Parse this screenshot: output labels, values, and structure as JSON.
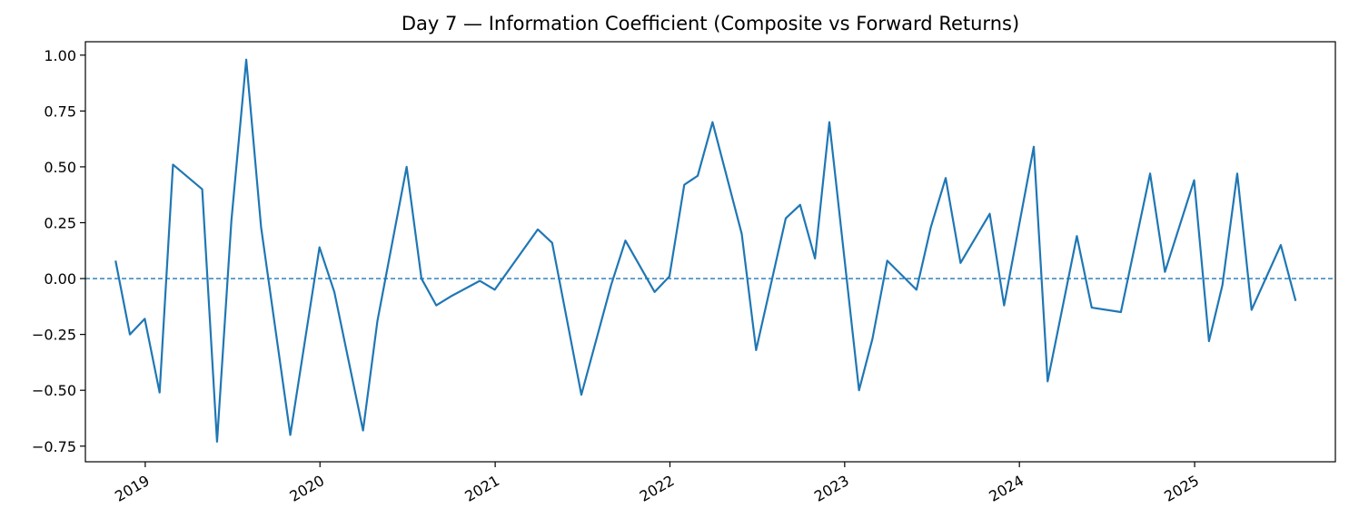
{
  "chart_data": {
    "type": "line",
    "title": "Day 7 — Information Coefficient (Composite vs Forward Returns)",
    "xlabel": "",
    "ylabel": "",
    "x_axis": {
      "type": "date",
      "range": [
        "2018-08-29",
        "2025-10-22"
      ],
      "tick_labels": [
        "2019",
        "2020",
        "2021",
        "2022",
        "2023",
        "2024",
        "2025"
      ],
      "tick_dates": [
        "2019-01-01",
        "2020-01-01",
        "2021-01-01",
        "2022-01-01",
        "2023-01-01",
        "2024-01-01",
        "2025-01-01"
      ]
    },
    "y_axis": {
      "range": [
        -0.82,
        1.06
      ],
      "tick_labels": [
        "−0.75",
        "−0.50",
        "−0.25",
        "0.00",
        "0.25",
        "0.50",
        "0.75",
        "1.00"
      ],
      "tick_values": [
        -0.75,
        -0.5,
        -0.25,
        0,
        0.25,
        0.5,
        0.75,
        1.0
      ]
    },
    "grid": false,
    "legend": "none",
    "reference_line": {
      "y": 0,
      "style": "dashed",
      "color": "#1f77b4"
    },
    "series": [
      {
        "color": "#1f77b4",
        "points": [
          [
            "2018-10-31",
            0.08
          ],
          [
            "2018-11-30",
            -0.25
          ],
          [
            "2018-12-31",
            -0.18
          ],
          [
            "2019-01-31",
            -0.51
          ],
          [
            "2019-02-28",
            0.51
          ],
          [
            "2019-04-30",
            0.4
          ],
          [
            "2019-05-31",
            -0.73
          ],
          [
            "2019-06-30",
            0.26
          ],
          [
            "2019-07-31",
            0.98
          ],
          [
            "2019-08-31",
            0.23
          ],
          [
            "2019-10-31",
            -0.7
          ],
          [
            "2019-12-31",
            0.14
          ],
          [
            "2020-01-31",
            -0.06
          ],
          [
            "2020-03-31",
            -0.68
          ],
          [
            "2020-04-30",
            -0.19
          ],
          [
            "2020-06-30",
            0.5
          ],
          [
            "2020-07-31",
            0.0
          ],
          [
            "2020-08-31",
            -0.12
          ],
          [
            "2020-09-30",
            -0.08
          ],
          [
            "2020-11-30",
            -0.01
          ],
          [
            "2020-12-31",
            -0.05
          ],
          [
            "2021-03-31",
            0.22
          ],
          [
            "2021-04-30",
            0.16
          ],
          [
            "2021-06-30",
            -0.52
          ],
          [
            "2021-08-31",
            -0.03
          ],
          [
            "2021-09-30",
            0.17
          ],
          [
            "2021-11-30",
            -0.06
          ],
          [
            "2021-12-31",
            0.01
          ],
          [
            "2022-01-31",
            0.42
          ],
          [
            "2022-02-28",
            0.46
          ],
          [
            "2022-03-31",
            0.7
          ],
          [
            "2022-05-31",
            0.2
          ],
          [
            "2022-06-30",
            -0.32
          ],
          [
            "2022-08-31",
            0.27
          ],
          [
            "2022-09-30",
            0.33
          ],
          [
            "2022-10-31",
            0.09
          ],
          [
            "2022-11-30",
            0.7
          ],
          [
            "2023-01-31",
            -0.5
          ],
          [
            "2023-02-28",
            -0.27
          ],
          [
            "2023-03-31",
            0.08
          ],
          [
            "2023-05-31",
            -0.05
          ],
          [
            "2023-06-30",
            0.23
          ],
          [
            "2023-07-31",
            0.45
          ],
          [
            "2023-08-31",
            0.07
          ],
          [
            "2023-10-31",
            0.29
          ],
          [
            "2023-11-30",
            -0.12
          ],
          [
            "2024-01-31",
            0.59
          ],
          [
            "2024-02-29",
            -0.46
          ],
          [
            "2024-04-30",
            0.19
          ],
          [
            "2024-05-31",
            -0.13
          ],
          [
            "2024-07-31",
            -0.15
          ],
          [
            "2024-09-30",
            0.47
          ],
          [
            "2024-10-31",
            0.03
          ],
          [
            "2024-12-31",
            0.44
          ],
          [
            "2025-01-31",
            -0.28
          ],
          [
            "2025-02-28",
            -0.03
          ],
          [
            "2025-03-31",
            0.47
          ],
          [
            "2025-04-30",
            -0.14
          ],
          [
            "2025-06-30",
            0.15
          ],
          [
            "2025-07-31",
            -0.1
          ]
        ]
      }
    ]
  }
}
